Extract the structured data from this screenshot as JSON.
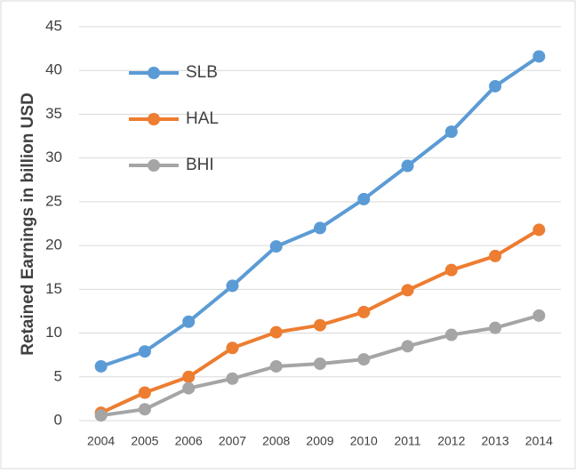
{
  "chart_data": {
    "type": "line",
    "ylabel": "Retained Earnings in billion USD",
    "categories": [
      "2004",
      "2005",
      "2006",
      "2007",
      "2008",
      "2009",
      "2010",
      "2011",
      "2012",
      "2013",
      "2014"
    ],
    "series": [
      {
        "name": "SLB",
        "color": "#5b9bd5",
        "values": [
          6.2,
          7.9,
          11.3,
          15.4,
          19.9,
          22.0,
          25.3,
          29.1,
          33.0,
          38.2,
          41.6
        ]
      },
      {
        "name": "HAL",
        "color": "#ed7d31",
        "values": [
          0.9,
          3.2,
          5.0,
          8.3,
          10.1,
          10.9,
          12.4,
          14.9,
          17.2,
          18.8,
          21.8
        ]
      },
      {
        "name": "BHI",
        "color": "#a5a5a5",
        "values": [
          0.6,
          1.3,
          3.7,
          4.8,
          6.2,
          6.5,
          7.0,
          8.5,
          9.8,
          10.6,
          12.0
        ]
      }
    ],
    "ylim": [
      0,
      45
    ],
    "yticks": [
      0,
      5,
      10,
      15,
      20,
      25,
      30,
      35,
      40,
      45
    ],
    "grid": true,
    "legend": "upper left"
  }
}
